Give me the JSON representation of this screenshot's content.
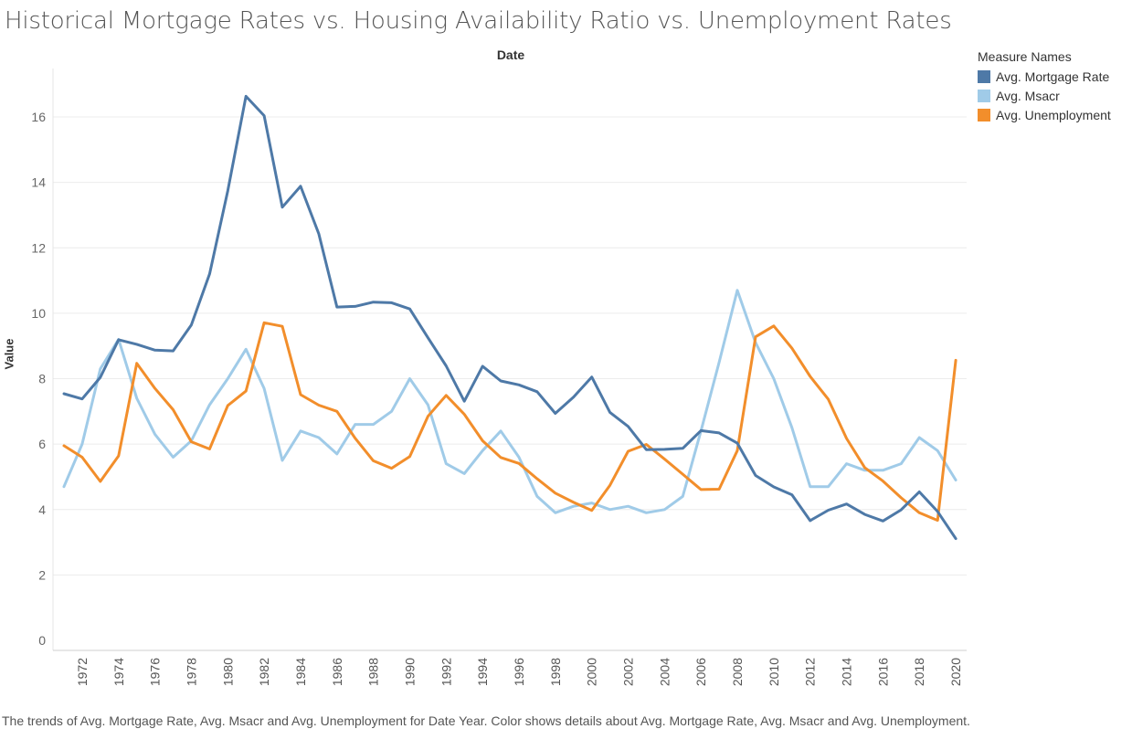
{
  "title": "Historical Mortgage Rates vs. Housing Availability Ratio vs. Unemployment Rates",
  "caption": "The trends of Avg. Mortgage Rate, Avg. Msacr and Avg. Unemployment for Date Year.  Color shows details about Avg. Mortgage Rate, Avg. Msacr and Avg. Unemployment.",
  "legend": {
    "title": "Measure Names",
    "items": [
      {
        "label": "Avg. Mortgage Rate",
        "color": "#4e79a7"
      },
      {
        "label": "Avg. Msacr",
        "color": "#a0cbe8"
      },
      {
        "label": "Avg. Unemployment",
        "color": "#f28e2b"
      }
    ]
  },
  "chart_data": {
    "type": "line",
    "title": "Historical Mortgage Rates vs. Housing Availability Ratio vs. Unemployment Rates",
    "xlabel": "Date",
    "ylabel": "Value",
    "xlim": [
      1971,
      2020
    ],
    "ylim": [
      0,
      17.5
    ],
    "grid": true,
    "legend_position": "top-right",
    "x_ticks": [
      1972,
      1974,
      1976,
      1978,
      1980,
      1982,
      1984,
      1986,
      1988,
      1990,
      1992,
      1994,
      1996,
      1998,
      2000,
      2002,
      2004,
      2006,
      2008,
      2010,
      2012,
      2014,
      2016,
      2018,
      2020
    ],
    "y_ticks": [
      0,
      2,
      4,
      6,
      8,
      10,
      12,
      14,
      16
    ],
    "x": [
      1971,
      1972,
      1973,
      1974,
      1975,
      1976,
      1977,
      1978,
      1979,
      1980,
      1981,
      1982,
      1983,
      1984,
      1985,
      1986,
      1987,
      1988,
      1989,
      1990,
      1991,
      1992,
      1993,
      1994,
      1995,
      1996,
      1997,
      1998,
      1999,
      2000,
      2001,
      2002,
      2003,
      2004,
      2005,
      2006,
      2007,
      2008,
      2009,
      2010,
      2011,
      2012,
      2013,
      2014,
      2015,
      2016,
      2017,
      2018,
      2019,
      2020
    ],
    "series": [
      {
        "name": "Avg. Mortgage Rate",
        "color": "#4e79a7",
        "values": [
          7.54,
          7.38,
          8.04,
          9.19,
          9.05,
          8.87,
          8.85,
          9.64,
          11.2,
          13.74,
          16.63,
          16.04,
          13.24,
          13.88,
          12.43,
          10.19,
          10.21,
          10.34,
          10.32,
          10.13,
          9.25,
          8.39,
          7.31,
          8.38,
          7.93,
          7.81,
          7.6,
          6.94,
          7.44,
          8.05,
          6.97,
          6.54,
          5.83,
          5.84,
          5.87,
          6.41,
          6.34,
          6.03,
          5.04,
          4.69,
          4.45,
          3.66,
          3.98,
          4.17,
          3.85,
          3.65,
          3.99,
          4.54,
          3.94,
          3.11
        ]
      },
      {
        "name": "Avg. Msacr",
        "color": "#a0cbe8",
        "values": [
          4.7,
          6.0,
          8.3,
          9.2,
          7.4,
          6.3,
          5.6,
          6.1,
          7.2,
          8.0,
          8.9,
          7.7,
          5.5,
          6.4,
          6.2,
          5.7,
          6.6,
          6.6,
          7.0,
          8.0,
          7.2,
          5.4,
          5.1,
          5.8,
          6.4,
          5.6,
          4.4,
          3.9,
          4.1,
          4.2,
          4.0,
          4.1,
          3.9,
          4.0,
          4.4,
          6.4,
          8.5,
          10.7,
          9.1,
          8.0,
          6.5,
          4.7,
          4.7,
          5.4,
          5.2,
          5.2,
          5.4,
          6.2,
          5.8,
          4.9
        ]
      },
      {
        "name": "Avg. Unemployment",
        "color": "#f28e2b",
        "values": [
          5.95,
          5.6,
          4.86,
          5.64,
          8.47,
          7.7,
          7.05,
          6.07,
          5.85,
          7.18,
          7.62,
          9.71,
          9.6,
          7.51,
          7.19,
          7.0,
          6.18,
          5.49,
          5.26,
          5.62,
          6.85,
          7.49,
          6.91,
          6.1,
          5.59,
          5.41,
          4.94,
          4.5,
          4.22,
          3.97,
          4.74,
          5.78,
          5.99,
          5.54,
          5.08,
          4.61,
          4.62,
          5.8,
          9.28,
          9.61,
          8.93,
          8.07,
          7.37,
          6.17,
          5.28,
          4.87,
          4.36,
          3.9,
          3.67,
          8.56
        ]
      }
    ]
  }
}
